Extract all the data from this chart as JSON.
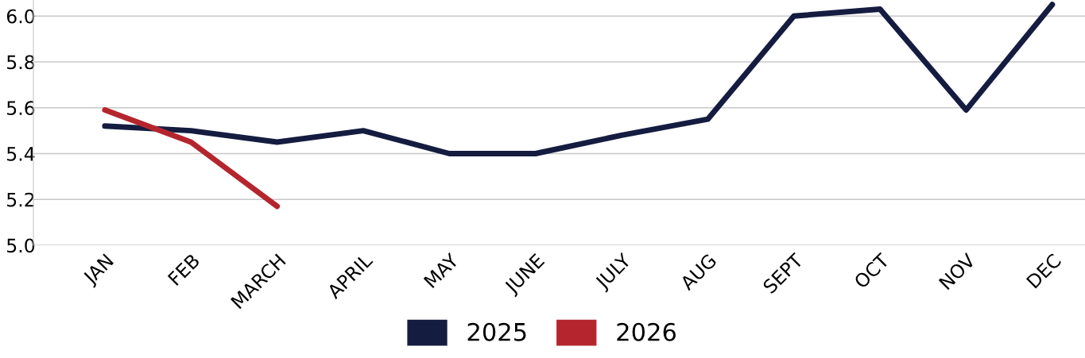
{
  "chart_data": {
    "type": "line",
    "categories": [
      "JAN",
      "FEB",
      "MARCH",
      "APRIL",
      "MAY",
      "JUNE",
      "JULY",
      "AUG",
      "SEPT",
      "OCT",
      "NOV",
      "DEC"
    ],
    "series": [
      {
        "name": "2025",
        "color": "#141c40",
        "values": [
          5.52,
          5.5,
          5.45,
          5.5,
          5.4,
          5.4,
          5.48,
          5.55,
          6.0,
          6.03,
          5.59,
          6.05
        ]
      },
      {
        "name": "2026",
        "color": "#b5252e",
        "values": [
          5.59,
          5.45,
          5.17,
          null,
          null,
          null,
          null,
          null,
          null,
          null,
          null,
          null
        ]
      }
    ],
    "ylim": [
      5.0,
      6.07
    ],
    "yticks": [
      {
        "value": 5.0,
        "label": "5.0"
      },
      {
        "value": 5.2,
        "label": "5.2"
      },
      {
        "value": 5.4,
        "label": "5.4"
      },
      {
        "value": 5.6,
        "label": "5.6"
      },
      {
        "value": 5.8,
        "label": "5.8"
      },
      {
        "value": 6.0,
        "label": "6.0"
      }
    ],
    "grid": "y",
    "legend": "bottom",
    "marker": "none",
    "line_style": "solid"
  }
}
